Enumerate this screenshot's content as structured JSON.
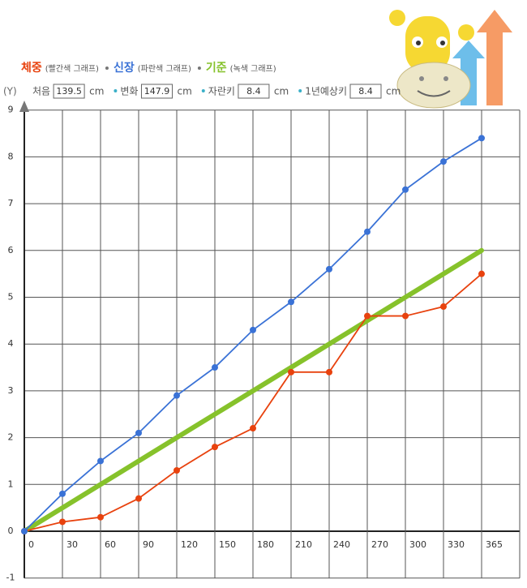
{
  "chart_data": {
    "type": "line",
    "axis_label": "(Y)",
    "categories": [
      "0",
      "30",
      "60",
      "90",
      "120",
      "150",
      "180",
      "210",
      "240",
      "270",
      "300",
      "330",
      "365"
    ],
    "series": [
      {
        "name": "체중",
        "note": "(빨간색 그래프)",
        "color": "#e8420e",
        "markers": true,
        "values": [
          0,
          0.2,
          0.3,
          0.7,
          1.3,
          1.8,
          2.2,
          3.4,
          3.4,
          4.6,
          4.6,
          4.8,
          5.5
        ]
      },
      {
        "name": "신장",
        "note": "(파란색 그래프)",
        "color": "#3a72d6",
        "markers": true,
        "values": [
          0,
          0.8,
          1.5,
          2.1,
          2.9,
          3.5,
          4.3,
          4.9,
          5.6,
          6.4,
          7.3,
          7.9,
          8.4
        ]
      },
      {
        "name": "기준",
        "note": "(녹색 그래프)",
        "color": "#86c22b",
        "markers": false,
        "values": [
          0,
          0.5,
          1,
          1.5,
          2,
          2.5,
          3,
          3.5,
          4,
          4.5,
          5,
          5.5,
          6
        ]
      }
    ],
    "info": [
      {
        "label": "처음",
        "value": 139.5,
        "unit": "cm"
      },
      {
        "label": "변화",
        "value": 147.9,
        "unit": "cm"
      },
      {
        "label": "자란키",
        "value": 8.4,
        "unit": "cm"
      },
      {
        "label": "1년예상키",
        "value": 8.4,
        "unit": "cm"
      }
    ],
    "ylim": [
      -1,
      9
    ],
    "yticks": [
      -1,
      0,
      1,
      2,
      3,
      4,
      5,
      6,
      7,
      8,
      9
    ],
    "grid": true
  }
}
